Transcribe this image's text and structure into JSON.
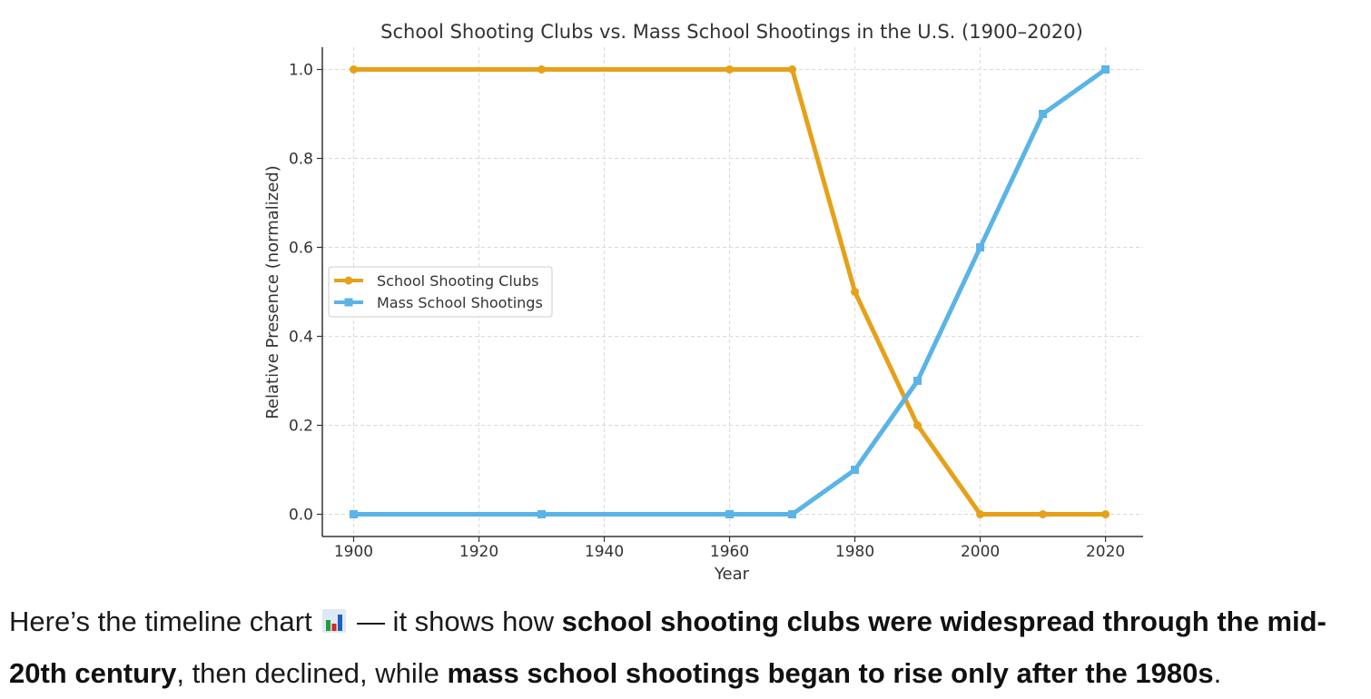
{
  "chart_data": {
    "type": "line",
    "title": "School Shooting Clubs vs. Mass School Shootings in the U.S. (1900–2020)",
    "xlabel": "Year",
    "ylabel": "Relative Presence (normalized)",
    "xlim": [
      1895,
      2026
    ],
    "ylim": [
      -0.05,
      1.05
    ],
    "xticks": [
      1900,
      1920,
      1940,
      1960,
      1980,
      2000,
      2020
    ],
    "yticks": [
      "0.0",
      "0.2",
      "0.4",
      "0.6",
      "0.8",
      "1.0"
    ],
    "grid": true,
    "legend_position": "center-left",
    "x": [
      1900,
      1930,
      1960,
      1970,
      1980,
      1990,
      2000,
      2010,
      2020
    ],
    "series": [
      {
        "name": "School Shooting Clubs",
        "color": "#E6A11A",
        "marker": "circle",
        "values": [
          1.0,
          1.0,
          1.0,
          1.0,
          0.5,
          0.2,
          0.0,
          0.0,
          0.0
        ]
      },
      {
        "name": "Mass School Shootings",
        "color": "#5AB4E6",
        "marker": "square",
        "values": [
          0.0,
          0.0,
          0.0,
          0.0,
          0.1,
          0.3,
          0.6,
          0.9,
          1.0
        ]
      }
    ]
  },
  "caption": {
    "t1": "Here’s the timeline chart",
    "emoji": "bar-chart-icon",
    "t2": " — it shows how ",
    "b1": "school shooting clubs were widespread through the mid-20th century",
    "t3": ", then declined, while ",
    "b2": "mass school shootings began to rise only after the 1980s",
    "t4": "."
  }
}
